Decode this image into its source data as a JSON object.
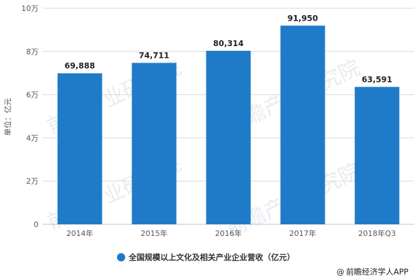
{
  "chart_data": {
    "type": "bar",
    "categories": [
      "2014年",
      "2015年",
      "2016年",
      "2017年",
      "2018年Q3"
    ],
    "series": [
      {
        "name": "全国规模以上文化及相关产业企业营收（亿元）",
        "values": [
          69888,
          74711,
          80314,
          91950,
          63591
        ],
        "labels": [
          "69,888",
          "74,711",
          "80,314",
          "91,950",
          "63,591"
        ],
        "color": "#1f7bc8"
      }
    ],
    "ylabel": "单位：亿元",
    "ylim": [
      0,
      100000
    ],
    "yticks": [
      0,
      20000,
      40000,
      60000,
      80000,
      100000
    ],
    "ytick_labels": [
      "0",
      "2万",
      "4万",
      "6万",
      "8万",
      "10万"
    ],
    "grid": true,
    "legend_position": "bottom",
    "gridline_color": "#d9d9d9"
  },
  "source": {
    "symbol": "@",
    "text": "前瞻经济学人APP"
  },
  "watermark": "前瞻产业研究院"
}
